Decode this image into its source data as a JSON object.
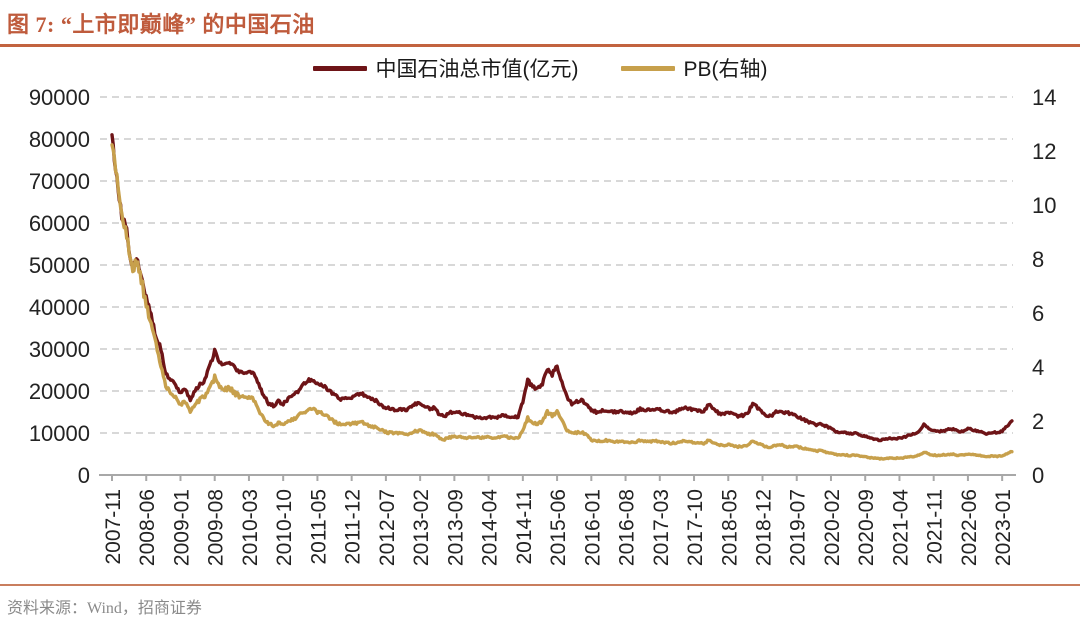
{
  "title": "图 7: “上市即巅峰” 的中国石油",
  "source_note": "资料来源：Wind，招商证券",
  "colors": {
    "accent_title": "#bf5b3c",
    "title_rule": "#c2633f",
    "bottom_rule": "#c97e5e",
    "grid": "#d8d8d8",
    "axis": "#a8a8a8",
    "tick_label": "#232323",
    "market_cap_line": "#6e1417",
    "pb_line": "#c7a04c"
  },
  "chart_data": {
    "type": "line",
    "title": "“上市即巅峰”的中国石油",
    "legend_position": "top-center",
    "grid": "dashed-horizontal",
    "x_start": "2007-11",
    "x_end": "2023-03",
    "months_per_tick": 7,
    "x_tick_labels": [
      "2007-11",
      "2008-06",
      "2009-01",
      "2009-08",
      "2010-03",
      "2010-10",
      "2011-05",
      "2011-12",
      "2012-07",
      "2013-02",
      "2013-09",
      "2014-04",
      "2014-11",
      "2015-06",
      "2016-01",
      "2016-08",
      "2017-03",
      "2017-10",
      "2018-05",
      "2018-12",
      "2019-07",
      "2020-02",
      "2020-09",
      "2021-04",
      "2021-11",
      "2022-06",
      "2023-01"
    ],
    "left_axis": {
      "min": 0,
      "max": 90000,
      "step": 10000
    },
    "right_axis": {
      "min": 0,
      "max": 14,
      "step": 2
    },
    "series": [
      {
        "id": "market-cap",
        "name": "中国石油总市值(亿元)",
        "axis": "left",
        "color": "#6e1417",
        "values": [
          80000,
          70000,
          62000,
          58000,
          50000,
          52000,
          48000,
          42000,
          38000,
          33000,
          30000,
          24000,
          23000,
          21500,
          19500,
          20500,
          18000,
          20000,
          21500,
          22500,
          26000,
          29500,
          26500,
          26000,
          27000,
          25500,
          24500,
          24000,
          25000,
          24000,
          21500,
          19000,
          17000,
          16500,
          17500,
          17000,
          18000,
          19000,
          20000,
          21500,
          22500,
          22800,
          22000,
          21500,
          20500,
          19500,
          18500,
          18000,
          18500,
          18500,
          19000,
          19500,
          18500,
          18000,
          17800,
          16600,
          16000,
          15800,
          15500,
          15800,
          15400,
          16000,
          16800,
          17000,
          16300,
          15800,
          16000,
          14200,
          14000,
          14800,
          15000,
          14800,
          14500,
          14200,
          13800,
          13600,
          13500,
          13800,
          13700,
          13800,
          14200,
          14000,
          13900,
          13800,
          17500,
          22500,
          21000,
          20500,
          21500,
          25500,
          24000,
          26000,
          22000,
          18500,
          17000,
          17500,
          17800,
          17000,
          15500,
          15000,
          15300,
          15500,
          15200,
          15000,
          15200,
          15000,
          14800,
          15000,
          15800,
          15500,
          15500,
          15800,
          15500,
          15300,
          15000,
          15000,
          15500,
          16000,
          15800,
          15500,
          15300,
          15200,
          16800,
          15500,
          14800,
          14500,
          14800,
          14500,
          14000,
          14200,
          14800,
          17000,
          16000,
          14800,
          13800,
          14300,
          15200,
          15100,
          14800,
          14600,
          14000,
          13400,
          12900,
          12300,
          12000,
          12200,
          11600,
          11200,
          10400,
          10200,
          10000,
          9800,
          10000,
          9500,
          9200,
          8800,
          8500,
          8300,
          8500,
          8800,
          8600,
          8800,
          9000,
          9500,
          9800,
          10500,
          12000,
          11000,
          10500,
          10300,
          10500,
          10800,
          11000,
          10300,
          10500,
          11000,
          10800,
          10500,
          10200,
          9800,
          10200,
          10000,
          10500,
          11500,
          12800
        ]
      },
      {
        "id": "pb",
        "name": "PB(右轴)",
        "axis": "right",
        "color": "#c7a04c",
        "values": [
          12.5,
          10.87,
          9.57,
          8.9,
          7.63,
          7.89,
          7.24,
          6.3,
          5.67,
          4.89,
          4.07,
          3.24,
          3.08,
          2.87,
          2.59,
          2.7,
          2.36,
          2.61,
          2.79,
          2.91,
          3.19,
          3.6,
          3.22,
          3.14,
          3.25,
          3.04,
          2.91,
          2.84,
          2.94,
          2.81,
          2.4,
          2.12,
          1.89,
          1.83,
          1.93,
          1.87,
          1.97,
          2.07,
          2.17,
          2.32,
          2.42,
          2.44,
          2.34,
          2.27,
          2.17,
          2.03,
          1.92,
          1.86,
          1.9,
          1.89,
          1.93,
          1.97,
          1.86,
          1.8,
          1.77,
          1.66,
          1.59,
          1.56,
          1.53,
          1.55,
          1.5,
          1.56,
          1.63,
          1.64,
          1.57,
          1.51,
          1.52,
          1.35,
          1.32,
          1.39,
          1.44,
          1.42,
          1.39,
          1.37,
          1.42,
          1.4,
          1.38,
          1.4,
          1.39,
          1.39,
          1.43,
          1.4,
          1.39,
          1.37,
          1.64,
          2.1,
          1.94,
          1.89,
          1.98,
          2.34,
          2.2,
          2.37,
          1.99,
          1.67,
          1.53,
          1.57,
          1.58,
          1.51,
          1.3,
          1.25,
          1.27,
          1.28,
          1.25,
          1.23,
          1.24,
          1.22,
          1.2,
          1.22,
          1.28,
          1.24,
          1.24,
          1.26,
          1.23,
          1.21,
          1.18,
          1.18,
          1.22,
          1.25,
          1.23,
          1.2,
          1.18,
          1.17,
          1.29,
          1.18,
          1.13,
          1.1,
          1.12,
          1.1,
          1.05,
          1.06,
          1.11,
          1.27,
          1.19,
          1.1,
          1.02,
          1.05,
          1.11,
          1.1,
          1.04,
          1.06,
          1.05,
          1.0,
          0.96,
          0.91,
          0.89,
          0.9,
          0.85,
          0.82,
          0.76,
          0.74,
          0.74,
          0.72,
          0.74,
          0.69,
          0.68,
          0.64,
          0.62,
          0.6,
          0.61,
          0.63,
          0.62,
          0.63,
          0.64,
          0.68,
          0.69,
          0.74,
          0.85,
          0.77,
          0.74,
          0.72,
          0.75,
          0.76,
          0.78,
          0.73,
          0.74,
          0.77,
          0.75,
          0.74,
          0.71,
          0.68,
          0.71,
          0.69,
          0.72,
          0.79,
          0.87
        ]
      }
    ]
  }
}
